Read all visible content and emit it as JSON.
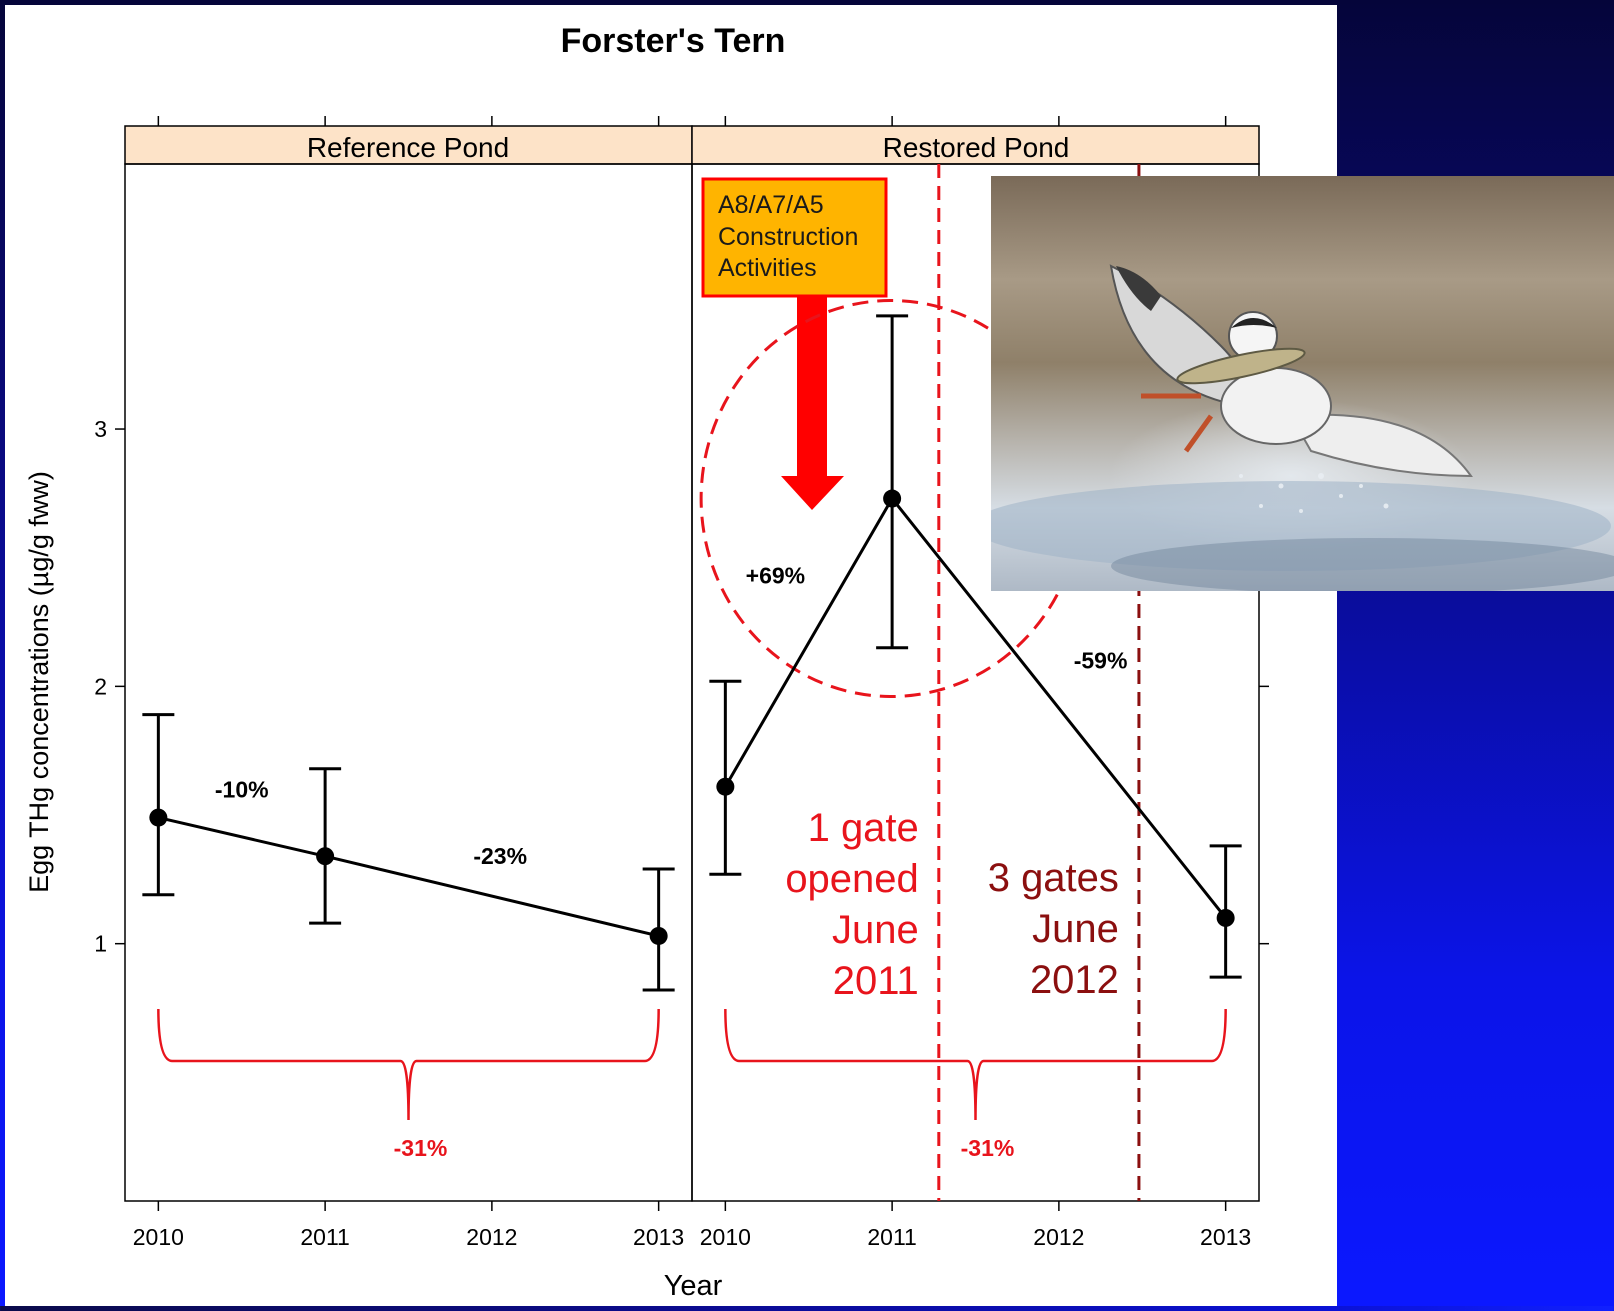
{
  "colors": {
    "strip_fill": "#fde3c8",
    "annotation_red": "#e8141c",
    "annotation_dark_red": "#8b0f0f",
    "callout_fill": "#ffb400",
    "callout_border": "#ff0000"
  },
  "chart_data": {
    "type": "line",
    "title": "Forster's Tern",
    "xlabel": "Year",
    "ylabel": "Egg THg concentrations (µg/g fww)",
    "xlim": [
      2009.8,
      2013.2
    ],
    "ylim": [
      0,
      4.03
    ],
    "yticks": [
      1,
      2,
      3
    ],
    "xticks": [
      2010,
      2011,
      2012,
      2013
    ],
    "panels": [
      {
        "name": "Reference Pond",
        "points": [
          {
            "x": 2010,
            "y": 1.49,
            "low": 1.19,
            "high": 1.89
          },
          {
            "x": 2011,
            "y": 1.34,
            "low": 1.08,
            "high": 1.68
          },
          {
            "x": 2013,
            "y": 1.03,
            "low": 0.82,
            "high": 1.29
          }
        ],
        "segment_labels": [
          {
            "text": "-10%",
            "x": 2010.5,
            "y": 1.6
          },
          {
            "text": "-23%",
            "x": 2012.05,
            "y": 1.34
          }
        ],
        "overall_change": {
          "text": "-31%",
          "from": 2010,
          "to": 2013
        }
      },
      {
        "name": "Restored Pond",
        "points": [
          {
            "x": 2010,
            "y": 1.61,
            "low": 1.27,
            "high": 2.02
          },
          {
            "x": 2011,
            "y": 2.73,
            "low": 2.15,
            "high": 3.44
          },
          {
            "x": 2013,
            "y": 1.1,
            "low": 0.87,
            "high": 1.38
          }
        ],
        "segment_labels": [
          {
            "text": "+69%",
            "x": 2010.3,
            "y": 2.43
          },
          {
            "text": "-59%",
            "x": 2012.25,
            "y": 2.1
          }
        ],
        "overall_change": {
          "text": "-31%",
          "from": 2010,
          "to": 2013
        },
        "events": [
          {
            "x": 2011.28,
            "label": [
              "1 gate",
              "opened",
              "June",
              "2011"
            ]
          },
          {
            "x": 2012.48,
            "label": [
              "3 gates",
              "June",
              "2012"
            ]
          }
        ],
        "callout": {
          "lines": [
            "A8/A7/A5",
            "Construction",
            "Activities"
          ]
        }
      }
    ]
  }
}
